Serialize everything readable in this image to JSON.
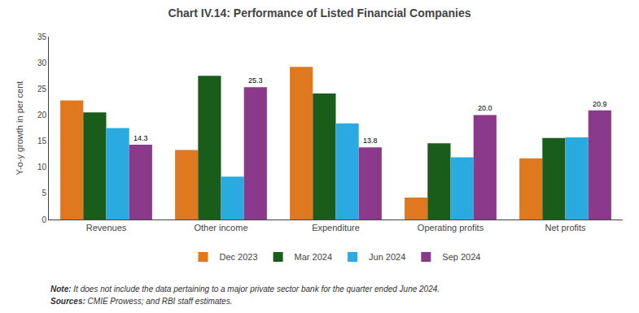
{
  "chart_data": {
    "type": "bar",
    "title": "Chart IV.14: Performance of Listed Financial Companies",
    "ylabel": "Y-o-y growth in per cent",
    "categories": [
      "Revenues",
      "Other income",
      "Expenditure",
      "Operating profits",
      "Net profits"
    ],
    "series": [
      {
        "name": "Dec 2023",
        "color": "#E07820",
        "values": [
          22.8,
          13.3,
          29.2,
          4.2,
          11.7
        ]
      },
      {
        "name": "Mar 2024",
        "color": "#1A5C1A",
        "values": [
          20.5,
          27.5,
          24.1,
          14.6,
          15.6
        ]
      },
      {
        "name": "Jun 2024",
        "color": "#29ABE2",
        "values": [
          17.5,
          8.2,
          18.4,
          11.9,
          15.7
        ]
      },
      {
        "name": "Sep 2024",
        "color": "#8B3A8B",
        "values": [
          14.3,
          25.3,
          13.8,
          20.0,
          20.9
        ],
        "data_labels": true,
        "value_labels": [
          "14.3",
          "25.3",
          "13.8",
          "20.0",
          "20.9"
        ]
      }
    ],
    "ylim": [
      0,
      35
    ],
    "yticks": [
      0,
      5,
      10,
      15,
      20,
      25,
      30,
      35
    ],
    "grid": false,
    "legend": "bottom",
    "annotations": [
      "Note: It does not include the data pertaining to a major private sector bank for the quarter ended June 2024.",
      "Sources: CMIE Prowess; and RBI staff estimates."
    ]
  }
}
